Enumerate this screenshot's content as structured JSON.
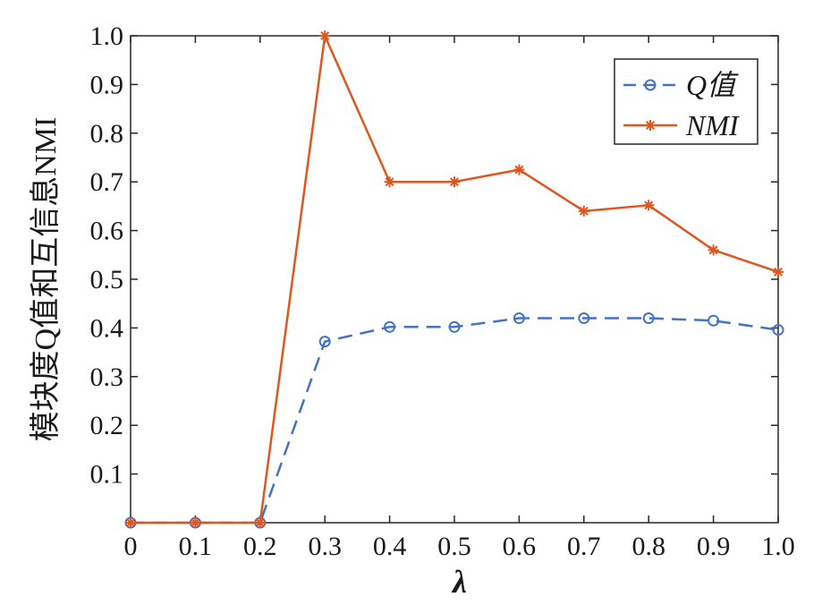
{
  "chart_data": {
    "type": "line",
    "xlabel": "λ",
    "ylabel": "模块度Q值和互信息NMI",
    "x": [
      0,
      0.1,
      0.2,
      0.3,
      0.4,
      0.5,
      0.6,
      0.7,
      0.8,
      0.9,
      1.0
    ],
    "xlim": [
      0,
      1.0
    ],
    "ylim": [
      0,
      1.0
    ],
    "x_ticks": [
      "0",
      "0.1",
      "0.2",
      "0.3",
      "0.4",
      "0.5",
      "0.6",
      "0.7",
      "0.8",
      "0.9",
      "1.0"
    ],
    "y_ticks": [
      "0.1",
      "0.2",
      "0.3",
      "0.4",
      "0.5",
      "0.6",
      "0.7",
      "0.8",
      "0.9",
      "1.0"
    ],
    "grid": false,
    "legend_position": "top-right",
    "series": [
      {
        "name": "Q值",
        "color": "#4472c4",
        "line_style": "dashed",
        "marker": "circle",
        "values": [
          0,
          0,
          0,
          0.372,
          0.402,
          0.402,
          0.42,
          0.42,
          0.42,
          0.415,
          0.396
        ]
      },
      {
        "name": "NMI",
        "color": "#e0561f",
        "line_style": "solid",
        "marker": "star",
        "values": [
          0,
          0,
          0,
          1.0,
          0.7,
          0.7,
          0.725,
          0.64,
          0.652,
          0.56,
          0.515
        ]
      }
    ]
  }
}
